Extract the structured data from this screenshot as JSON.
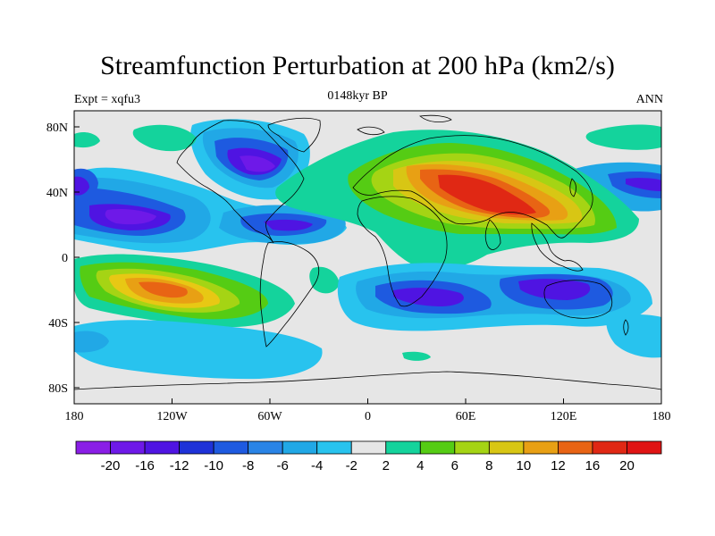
{
  "header": {
    "title": "Streamfunction Perturbation at 200 hPa (km2/s)",
    "left": "Expt = xqfu3",
    "center": "0148kyr BP",
    "right": "ANN"
  },
  "map": {
    "lon_ticks": [
      "180",
      "120W",
      "60W",
      "0",
      "60E",
      "120E",
      "180"
    ],
    "lat_ticks": [
      "80N",
      "40N",
      "0",
      "40S",
      "80S"
    ]
  },
  "colorbar": {
    "labels": [
      "-20",
      "-16",
      "-12",
      "-10",
      "-8",
      "-6",
      "-4",
      "-2",
      "2",
      "4",
      "6",
      "8",
      "10",
      "12",
      "16",
      "20"
    ],
    "colors": [
      "#8a1ee6",
      "#6e19e8",
      "#4f14e2",
      "#1e32d8",
      "#1e5ae0",
      "#2a84e6",
      "#21a8e6",
      "#28c3ee",
      "#e6e6e6",
      "#14d39c",
      "#55cc14",
      "#a5d414",
      "#d8c614",
      "#e8a014",
      "#e86414",
      "#e02814",
      "#e01414"
    ]
  },
  "legend_colors": {
    "neg_strong": "#5a14e0",
    "neg": "#1e5ae0",
    "neg_weak": "#28c3ee",
    "neutral": "#e6e6e6",
    "pos_weak": "#14d39c",
    "pos": "#55cc14",
    "pos_mid": "#e8c814",
    "pos_strong": "#e86414",
    "pos_max": "#e02814"
  }
}
